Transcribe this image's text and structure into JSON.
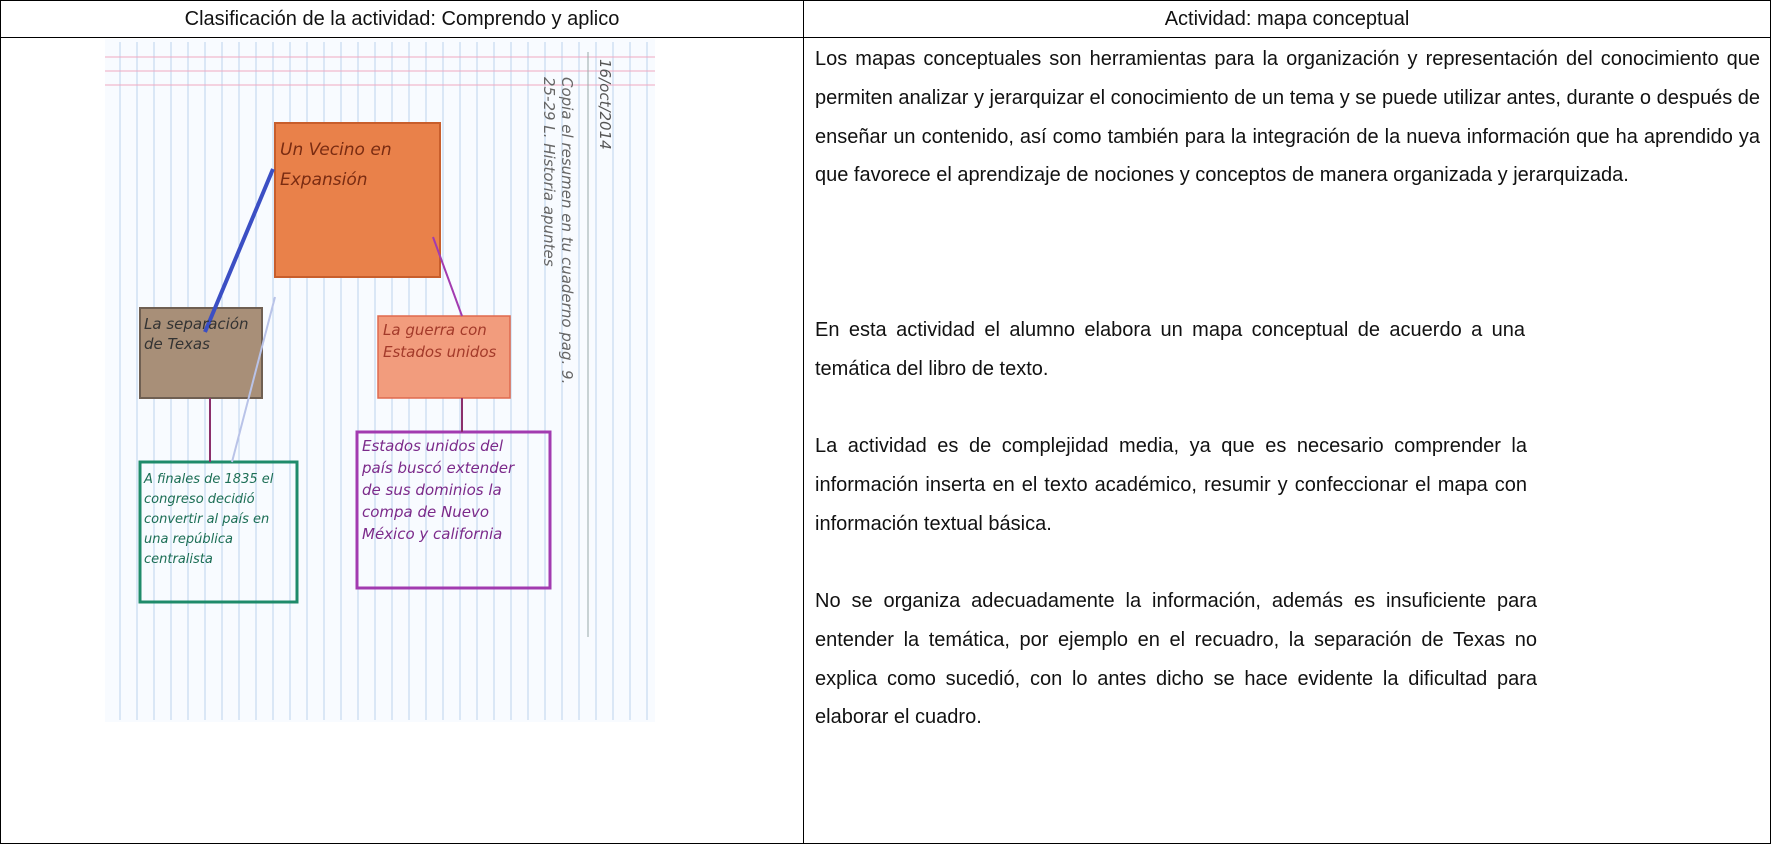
{
  "table": {
    "header": [
      "Clasificación de la actividad:  Comprendo y aplico",
      "Actividad: mapa conceptual"
    ],
    "image": {
      "date": "16/oct/2014",
      "instruction": [
        "Copia el resumen en tu cuaderno pag. 9.",
        "25-29 L. Historia apuntes"
      ],
      "boxes": [
        [
          "Un Vecino en",
          "Expansión"
        ],
        [
          "La separación",
          "de Texas"
        ],
        [
          "La guerra con",
          "Estados unidos"
        ],
        [
          "A finales de 1835 el",
          "congreso decidió",
          "convertir al país en",
          "una república",
          "centralista"
        ],
        [
          "Estados unidos del",
          "país buscó extender",
          "de sus dominios la",
          "compa de Nuevo",
          "México y california"
        ]
      ]
    },
    "paragraphs": [
      "Los mapas conceptuales son herramientas para la organización y representación del conocimiento que permiten analizar y jerarquizar el conocimiento de un tema y se puede utilizar antes, durante o después de enseñar un contenido, así como también para la integración de la nueva información que ha aprendido ya que favorece el aprendizaje de nociones y conceptos de manera organizada y jerarquizada.",
      "En esta actividad el alumno elabora un mapa conceptual de acuerdo a una temática del libro de texto.",
      "La actividad es de complejidad media, ya que es necesario comprender la información inserta en el texto académico, resumir y confeccionar el mapa con información textual básica.",
      "No se organiza adecuadamente la información, además es insuficiente para entender la temática, por ejemplo en el recuadro, la separación de Texas no explica como sucedió, con lo antes dicho se hace evidente la dificultad para elaborar el cuadro."
    ]
  }
}
